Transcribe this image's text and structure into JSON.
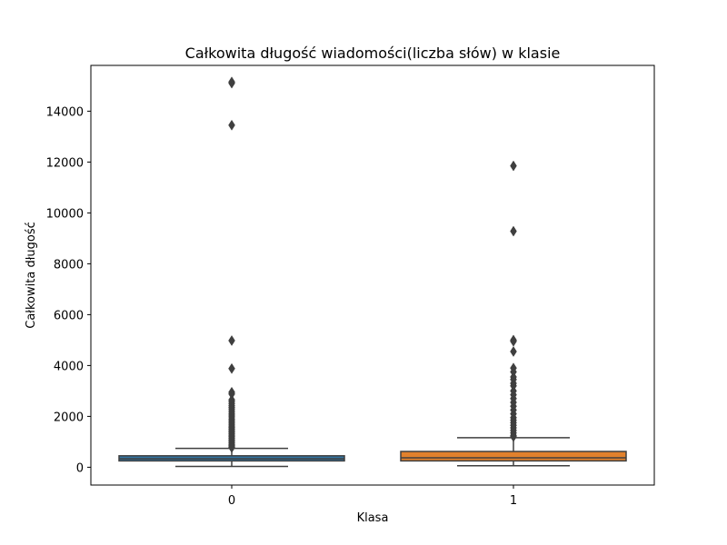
{
  "chart_data": {
    "type": "box",
    "title": "Całkowita długość wiadomości(liczba słów) w klasie",
    "xlabel": "Klasa",
    "ylabel": "Całkowita długość",
    "ylim": [
      -700,
      15800
    ],
    "yticks": [
      0,
      2000,
      4000,
      6000,
      8000,
      10000,
      12000,
      14000
    ],
    "grid": false,
    "categories": [
      "0",
      "1"
    ],
    "colors": [
      "#3274a1",
      "#e1812c"
    ],
    "edge_color": "#3f3f3f",
    "boxes": [
      {
        "category": "0",
        "whisker_low": 30,
        "q1": 250,
        "median": 330,
        "q3": 450,
        "whisker_high": 740,
        "outliers": [
          15150,
          15100,
          13450,
          4980,
          3880,
          2950,
          2880,
          2650,
          2580,
          2500,
          2420,
          2350,
          2280,
          2200,
          2120,
          2050,
          1980,
          1900,
          1830,
          1760,
          1690,
          1620,
          1560,
          1500,
          1440,
          1380,
          1320,
          1260,
          1200,
          1140,
          1080,
          1020,
          960,
          900,
          850,
          800,
          770
        ]
      },
      {
        "category": "1",
        "whisker_low": 60,
        "q1": 250,
        "median": 370,
        "q3": 620,
        "whisker_high": 1160,
        "outliers": [
          11850,
          9280,
          5000,
          4950,
          4550,
          3900,
          3750,
          3550,
          3450,
          3300,
          3200,
          3000,
          2850,
          2700,
          2550,
          2400,
          2250,
          2100,
          1950,
          1850,
          1750,
          1650,
          1550,
          1450,
          1350,
          1250,
          1200
        ]
      }
    ]
  }
}
